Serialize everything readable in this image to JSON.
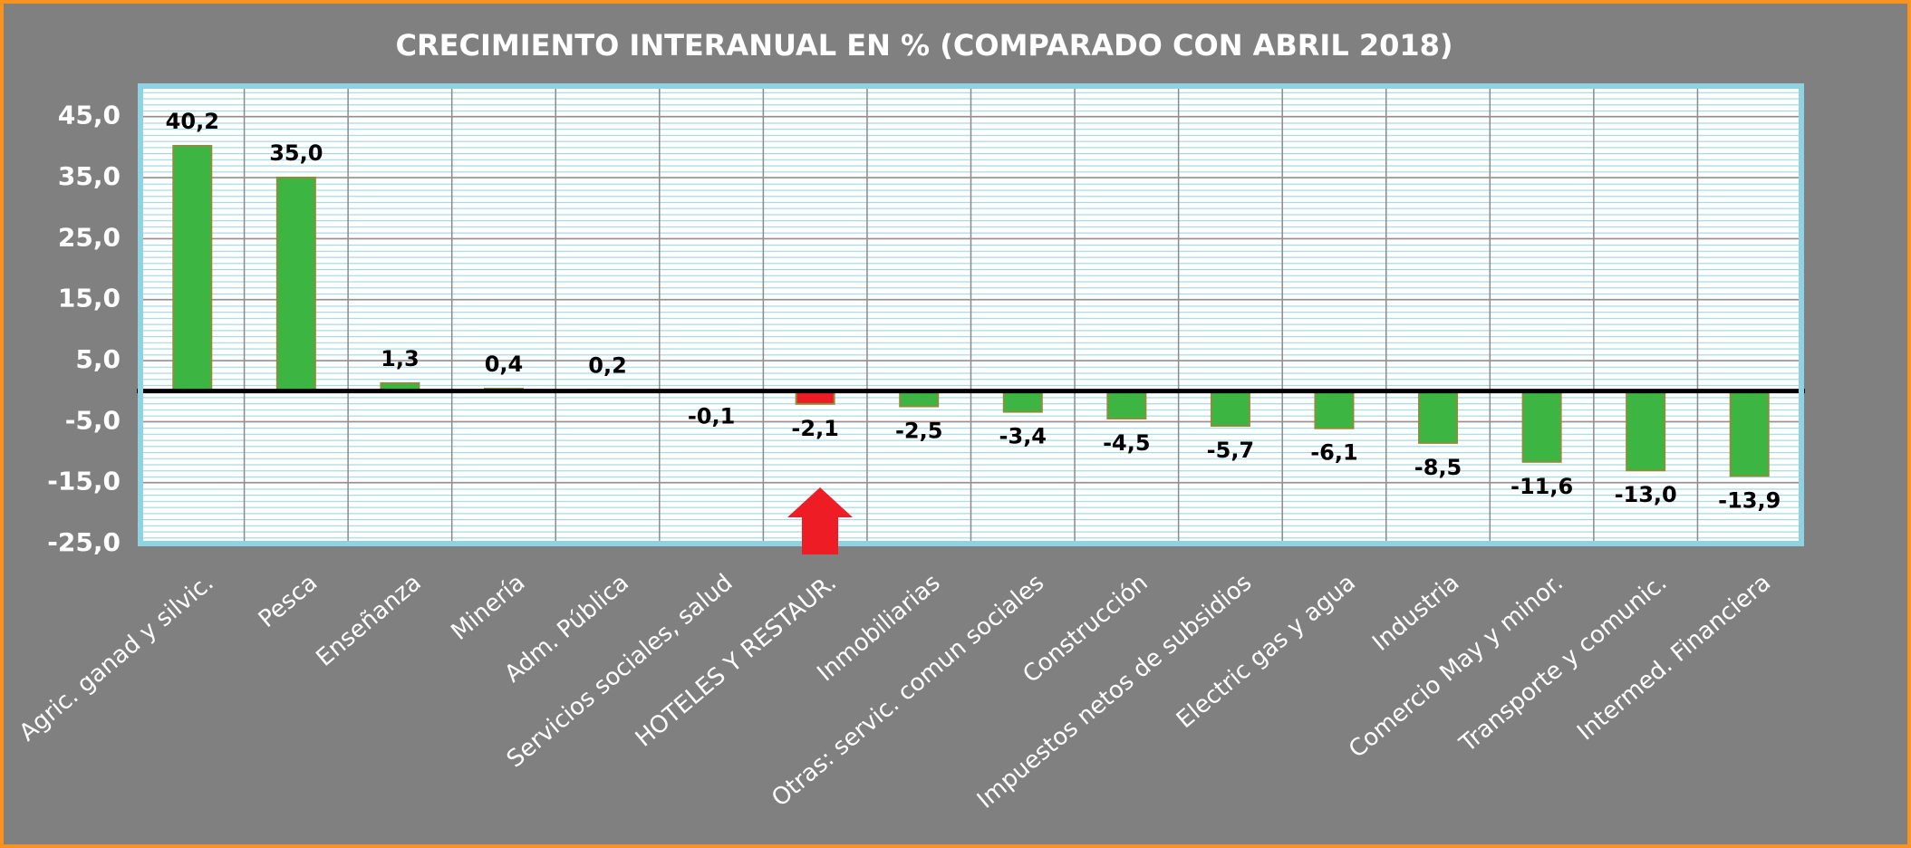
{
  "chart_data": {
    "type": "bar",
    "title": "CRECIMIENTO  INTERANUAL  EN % (COMPARADO CON  ABRIL 2018)",
    "categories": [
      "Agric.  ganad y silvic.",
      "Pesca",
      "Enseñanza",
      "Minería",
      "Adm. Pública",
      "Servicios sociales, salud",
      "HOTELES Y RESTAUR.",
      "Inmobiliarias",
      "Otras:   servic. comun sociales",
      "Construcción",
      "Impuestos netos de subsidios",
      "Electric gas y agua",
      "Industria",
      "Comercio May y minor.",
      "Transporte y comunic.",
      "Intermed. Financiera"
    ],
    "values": [
      40.2,
      35.0,
      1.3,
      0.4,
      0.2,
      -0.1,
      -2.1,
      -2.5,
      -3.4,
      -4.5,
      -5.7,
      -6.1,
      -8.5,
      -11.6,
      -13.0,
      -13.9
    ],
    "value_labels": [
      "40,2",
      "35,0",
      "1,3",
      "0,4",
      "0,2",
      "-0,1",
      "-2,1",
      "-2,5",
      "-3,4",
      "-4,5",
      "-5,7",
      "-6,1",
      "-8,5",
      "-11,6",
      "-13,0",
      "-13,9"
    ],
    "colors": [
      "#3db543",
      "#3db543",
      "#3db543",
      "#3db543",
      "#3db543",
      "#3db543",
      "#ee1c25",
      "#3db543",
      "#3db543",
      "#3db543",
      "#3db543",
      "#3db543",
      "#3db543",
      "#3db543",
      "#3db543",
      "#3db543"
    ],
    "ylim": [
      -25,
      50
    ],
    "yticks": [
      {
        "value": -25,
        "label": "-25,0"
      },
      {
        "value": -15,
        "label": "-15,0"
      },
      {
        "value": -5,
        "label": "-5,0"
      },
      {
        "value": 5,
        "label": "5,0"
      },
      {
        "value": 15,
        "label": "15,0"
      },
      {
        "value": 25,
        "label": "25,0"
      },
      {
        "value": 35,
        "label": "35,0"
      },
      {
        "value": 45,
        "label": "45,0"
      }
    ],
    "grid": true
  }
}
